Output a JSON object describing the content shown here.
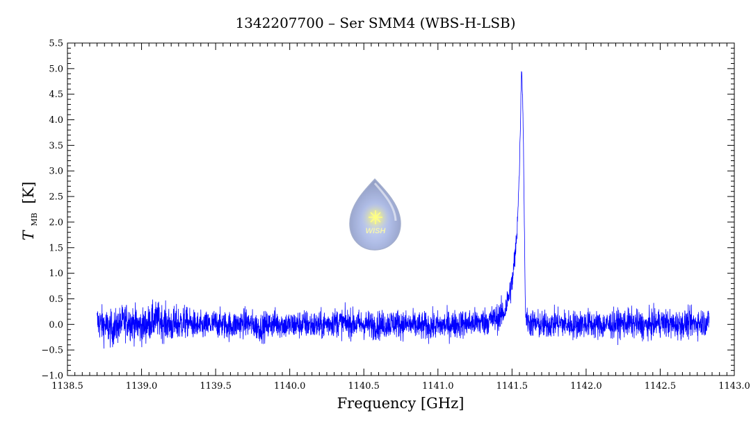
{
  "chart_data": {
    "type": "line",
    "title": "1342207700 – Ser SMM4 (WBS-H-LSB)",
    "xlabel": "Frequency [GHz]",
    "ylabel_main": "T",
    "ylabel_sub": "MB",
    "ylabel_unit": "[K]",
    "xlim": [
      1138.5,
      1143.0
    ],
    "ylim": [
      -1.0,
      5.5
    ],
    "x_ticks": [
      "1138.5",
      "1139.0",
      "1139.5",
      "1140.0",
      "1140.5",
      "1141.0",
      "1141.5",
      "1142.0",
      "1142.5",
      "1143.0"
    ],
    "y_ticks": [
      "−1.0",
      "−0.5",
      "0.0",
      "0.5",
      "1.0",
      "1.5",
      "2.0",
      "2.5",
      "3.0",
      "3.5",
      "4.0",
      "4.5",
      "5.0",
      "5.5"
    ],
    "series": [
      {
        "color": "#0000ff",
        "x_range": [
          1138.7,
          1142.83
        ],
        "noise_rms": 0.14,
        "line_center": 1141.565,
        "line_peak": 5.1,
        "points": [
          [
            1138.7,
            0.05
          ],
          [
            1138.8,
            -0.1
          ],
          [
            1138.9,
            0.08
          ],
          [
            1139.0,
            -0.05
          ],
          [
            1139.1,
            0.1
          ],
          [
            1139.2,
            -0.02
          ],
          [
            1139.3,
            0.05
          ],
          [
            1139.4,
            -0.05
          ],
          [
            1139.5,
            0.02
          ],
          [
            1139.6,
            -0.03
          ],
          [
            1139.7,
            0.04
          ],
          [
            1139.8,
            -0.06
          ],
          [
            1139.9,
            0.03
          ],
          [
            1140.0,
            -0.02
          ],
          [
            1140.1,
            0.01
          ],
          [
            1140.2,
            -0.03
          ],
          [
            1140.3,
            0.05
          ],
          [
            1140.4,
            0.02
          ],
          [
            1140.5,
            0.0
          ],
          [
            1140.6,
            -0.02
          ],
          [
            1140.7,
            0.03
          ],
          [
            1140.8,
            -0.01
          ],
          [
            1140.9,
            -0.04
          ],
          [
            1141.0,
            -0.03
          ],
          [
            1141.1,
            0.0
          ],
          [
            1141.2,
            0.02
          ],
          [
            1141.3,
            0.05
          ],
          [
            1141.4,
            0.12
          ],
          [
            1141.45,
            0.25
          ],
          [
            1141.5,
            0.8
          ],
          [
            1141.53,
            1.6
          ],
          [
            1141.55,
            3.0
          ],
          [
            1141.565,
            5.1
          ],
          [
            1141.575,
            4.0
          ],
          [
            1141.59,
            0.3
          ],
          [
            1141.6,
            0.05
          ],
          [
            1141.7,
            -0.02
          ],
          [
            1141.8,
            0.03
          ],
          [
            1141.9,
            -0.01
          ],
          [
            1142.0,
            0.02
          ],
          [
            1142.1,
            -0.02
          ],
          [
            1142.2,
            0.01
          ],
          [
            1142.3,
            0.03
          ],
          [
            1142.4,
            -0.03
          ],
          [
            1142.5,
            0.04
          ],
          [
            1142.6,
            -0.01
          ],
          [
            1142.7,
            0.02
          ],
          [
            1142.83,
            0.05
          ]
        ]
      }
    ],
    "grid": false,
    "watermark_text": "WISH"
  }
}
